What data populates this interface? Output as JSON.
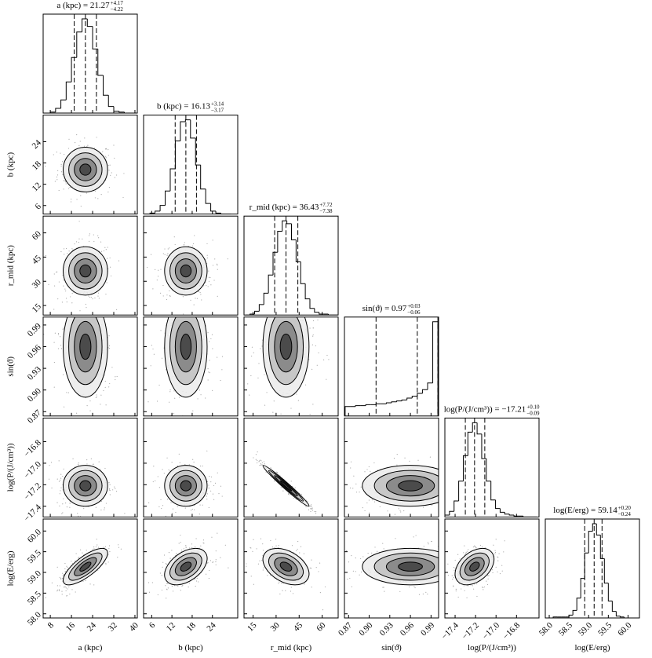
{
  "chart_data": {
    "type": "corner",
    "params": [
      {
        "label": "a (kpc)",
        "title": "a (kpc) = 21.27",
        "err_plus": "+4.17",
        "err_minus": "−4.22",
        "quantiles": [
          17.05,
          21.27,
          25.44
        ],
        "lim": [
          5.3,
          40.9
        ],
        "ticks": [
          8,
          16,
          24,
          32,
          40
        ],
        "bins": [
          6,
          8,
          10,
          12,
          14,
          16,
          18,
          20,
          22,
          24,
          26,
          28,
          30,
          32,
          34,
          36,
          38,
          40
        ],
        "counts": [
          0,
          1,
          5,
          14,
          33,
          59,
          86,
          100,
          92,
          68,
          40,
          19,
          7,
          2,
          1,
          0,
          0
        ]
      },
      {
        "label": "b (kpc)",
        "title": "b (kpc) = 16.13",
        "err_plus": "+3.14",
        "err_minus": "−3.17",
        "quantiles": [
          12.96,
          16.13,
          19.27
        ],
        "lim": [
          3.6,
          31.5
        ],
        "ticks": [
          6,
          12,
          18,
          24
        ],
        "bins": [
          4,
          5.5,
          7,
          8.5,
          10,
          11.5,
          13,
          14.5,
          16,
          17.5,
          19,
          20.5,
          22,
          23.5,
          25,
          26.5,
          28,
          29.5
        ],
        "counts": [
          0,
          1,
          3,
          9,
          24,
          47,
          76,
          96,
          98,
          79,
          51,
          26,
          11,
          3,
          1,
          0,
          0
        ]
      },
      {
        "label": "r_mid (kpc)",
        "title": "r_mid (kpc) = 36.43",
        "err_plus": "+7.72",
        "err_minus": "−7.38",
        "quantiles": [
          29.05,
          36.43,
          44.15
        ],
        "lim": [
          9.1,
          70.4
        ],
        "ticks": [
          15,
          30,
          45,
          60
        ],
        "bins": [
          10,
          13,
          16,
          19,
          22,
          25,
          28,
          31,
          34,
          37,
          40,
          43,
          46,
          49,
          52,
          55,
          58,
          61,
          64,
          67,
          70
        ],
        "counts": [
          0,
          1,
          4,
          11,
          23,
          42,
          66,
          88,
          99,
          96,
          79,
          56,
          33,
          17,
          7,
          3,
          1,
          1,
          0,
          0
        ]
      },
      {
        "label": "sin(ϑ)",
        "title": "sin(ϑ) = 0.97",
        "err_plus": "+0.03",
        "err_minus": "−0.06",
        "quantiles": [
          0.91,
          0.97,
          1.0
        ],
        "lim": [
          0.864,
          1.001
        ],
        "ticks": [
          0.87,
          {
            "value": 0.9,
            "label": "0.90"
          },
          0.93,
          0.96,
          0.99
        ],
        "bins": [
          0.865,
          0.8725,
          0.88,
          0.8875,
          0.895,
          0.9025,
          0.91,
          0.9175,
          0.925,
          0.9325,
          0.94,
          0.9475,
          0.955,
          0.9625,
          0.97,
          0.9775,
          0.985,
          0.9925,
          1.0
        ],
        "counts": [
          10,
          10,
          11,
          11,
          12,
          12,
          13,
          13,
          14,
          15,
          16,
          17,
          19,
          21,
          24,
          28,
          35,
          100
        ]
      },
      {
        "label": "log(P/(J/cm³))",
        "title": "log(P/(J/cm³)) = −17.21",
        "err_plus": "+0.10",
        "err_minus": "−0.09",
        "quantiles": [
          -17.3,
          -17.21,
          -17.11
        ],
        "lim": [
          -17.5,
          -16.58
        ],
        "ticks": [
          {
            "value": -17.4,
            "label": "−17.4"
          },
          {
            "value": -17.2,
            "label": "−17.2"
          },
          {
            "value": -17.0,
            "label": "−17.0"
          },
          {
            "value": -16.8,
            "label": "−16.8"
          }
        ],
        "bins": [
          -17.5,
          -17.455,
          -17.41,
          -17.365,
          -17.32,
          -17.275,
          -17.23,
          -17.185,
          -17.14,
          -17.095,
          -17.05,
          -17.005,
          -16.96,
          -16.915,
          -16.87,
          -16.825,
          -16.78,
          -16.735,
          -16.69,
          -16.645,
          -16.6
        ],
        "counts": [
          2,
          6,
          17,
          38,
          65,
          90,
          100,
          88,
          62,
          38,
          18,
          9,
          5,
          3,
          2,
          1,
          1,
          0,
          0,
          0
        ]
      },
      {
        "label": "log(E/erg)",
        "title": "log(E/erg) = 59.14",
        "err_plus": "+0.20",
        "err_minus": "−0.24",
        "quantiles": [
          58.9,
          59.14,
          59.34
        ],
        "lim": [
          57.9,
          60.29
        ],
        "ticks": [
          {
            "value": 58,
            "label": "58.0"
          },
          58.5,
          {
            "value": 59,
            "label": "59.0"
          },
          59.5,
          {
            "value": 60,
            "label": "60.0"
          }
        ],
        "bins": [
          57.9,
          58.0,
          58.1,
          58.2,
          58.3,
          58.4,
          58.5,
          58.6,
          58.7,
          58.8,
          58.9,
          59.0,
          59.1,
          59.2,
          59.3,
          59.4,
          59.5,
          59.6,
          59.7,
          59.8,
          59.9,
          60.0,
          60.1,
          60.2,
          60.3
        ],
        "counts": [
          0,
          0,
          1,
          1,
          1,
          1,
          3,
          8,
          21,
          42,
          69,
          92,
          100,
          88,
          63,
          37,
          18,
          7,
          2,
          1,
          0,
          0,
          0,
          0
        ]
      }
    ],
    "pairs": [
      {
        "x": 0,
        "y": 1,
        "mean": [
          21.27,
          16.13
        ],
        "sd": [
          4.2,
          3.15
        ],
        "rho": 0
      },
      {
        "x": 0,
        "y": 2,
        "mean": [
          21.27,
          36.43
        ],
        "sd": [
          4.2,
          7.5
        ],
        "rho": 0
      },
      {
        "x": 1,
        "y": 2,
        "mean": [
          16.13,
          36.43
        ],
        "sd": [
          3.15,
          7.5
        ],
        "rho": 0
      },
      {
        "x": 0,
        "y": 3,
        "mean": [
          21.27,
          0.96
        ],
        "sd": [
          4.2,
          0.035
        ],
        "rho": 0
      },
      {
        "x": 1,
        "y": 3,
        "mean": [
          16.13,
          0.96
        ],
        "sd": [
          3.15,
          0.035
        ],
        "rho": 0
      },
      {
        "x": 2,
        "y": 3,
        "mean": [
          36.43,
          0.96
        ],
        "sd": [
          7.5,
          0.035
        ],
        "rho": 0
      },
      {
        "x": 0,
        "y": 4,
        "mean": [
          21.27,
          -17.21
        ],
        "sd": [
          4.2,
          0.095
        ],
        "rho": 0
      },
      {
        "x": 1,
        "y": 4,
        "mean": [
          16.13,
          -17.21
        ],
        "sd": [
          3.15,
          0.095
        ],
        "rho": 0
      },
      {
        "x": 2,
        "y": 4,
        "mean": [
          36.43,
          -17.21
        ],
        "sd": [
          7.5,
          0.095
        ],
        "rho": -0.98
      },
      {
        "x": 3,
        "y": 4,
        "mean": [
          0.96,
          -17.21
        ],
        "sd": [
          0.035,
          0.095
        ],
        "rho": 0
      },
      {
        "x": 0,
        "y": 5,
        "mean": [
          21.27,
          59.14
        ],
        "sd": [
          4.2,
          0.22
        ],
        "rho": 0.75
      },
      {
        "x": 1,
        "y": 5,
        "mean": [
          16.13,
          59.14
        ],
        "sd": [
          3.15,
          0.22
        ],
        "rho": 0.45
      },
      {
        "x": 2,
        "y": 5,
        "mean": [
          36.43,
          59.14
        ],
        "sd": [
          7.5,
          0.22
        ],
        "rho": -0.4
      },
      {
        "x": 3,
        "y": 5,
        "mean": [
          0.96,
          59.14
        ],
        "sd": [
          0.035,
          0.22
        ],
        "rho": 0
      },
      {
        "x": 4,
        "y": 5,
        "mean": [
          -17.21,
          59.14
        ],
        "sd": [
          0.095,
          0.22
        ],
        "rho": 0.4
      }
    ]
  }
}
